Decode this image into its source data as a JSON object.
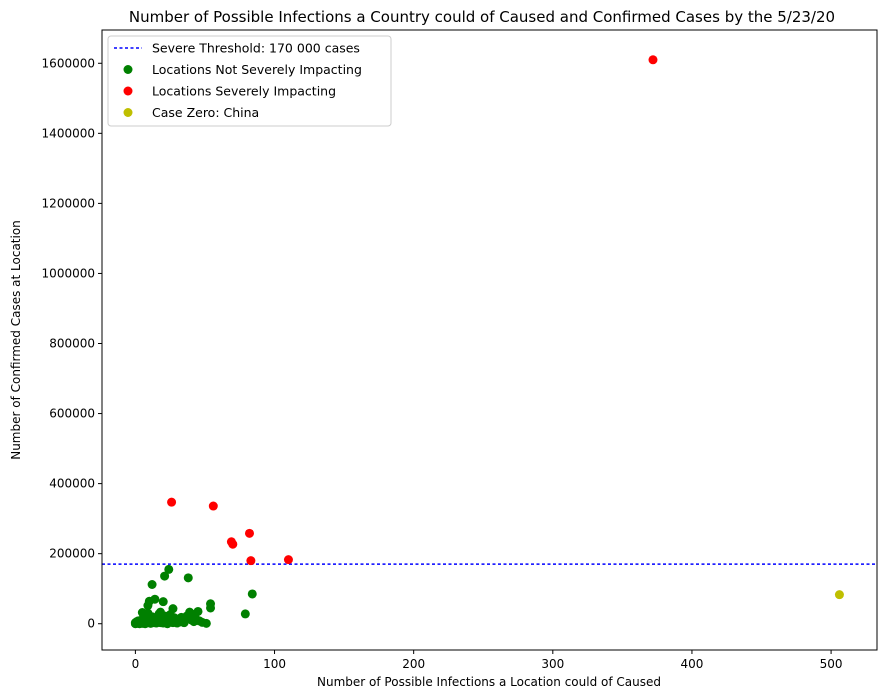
{
  "chart_data": {
    "type": "scatter",
    "title": "Number of Possible Infections a Country could of Caused and Confirmed Cases by the 5/23/20",
    "xlabel": "Number of Possible Infections a Location could of Caused",
    "ylabel": "Number of Confirmed Cases at Location",
    "xlim": [
      -24,
      533
    ],
    "ylim": [
      -75000,
      1695000
    ],
    "x_ticks": [
      0,
      100,
      200,
      300,
      400,
      500
    ],
    "x_tick_labels": [
      "0",
      "100",
      "200",
      "300",
      "400",
      "500"
    ],
    "y_ticks": [
      0,
      200000,
      400000,
      600000,
      800000,
      1000000,
      1200000,
      1400000,
      1600000
    ],
    "y_tick_labels": [
      "0",
      "200000",
      "400000",
      "600000",
      "800000",
      "1000000",
      "1200000",
      "1400000",
      "1600000"
    ],
    "grid": false,
    "legend_position": "top-left",
    "threshold": {
      "name": "Severe Threshold: 170 000 cases",
      "y": 170000,
      "color": "#0000ff",
      "style": "dotted"
    },
    "series": [
      {
        "name": "Locations Not Severely Impacting",
        "color": "#008000",
        "points": [
          [
            0,
            0
          ],
          [
            0,
            3000
          ],
          [
            1,
            1000
          ],
          [
            1,
            6000
          ],
          [
            2,
            2000
          ],
          [
            2,
            8000
          ],
          [
            3,
            0
          ],
          [
            3,
            4000
          ],
          [
            4,
            2000
          ],
          [
            4,
            10000
          ],
          [
            5,
            1000
          ],
          [
            5,
            5000
          ],
          [
            5,
            32000
          ],
          [
            6,
            3000
          ],
          [
            6,
            12000
          ],
          [
            7,
            0
          ],
          [
            7,
            7000
          ],
          [
            8,
            2000
          ],
          [
            8,
            15000
          ],
          [
            9,
            30000
          ],
          [
            9,
            52000
          ],
          [
            10,
            4000
          ],
          [
            10,
            64000
          ],
          [
            11,
            1000
          ],
          [
            11,
            8000
          ],
          [
            12,
            20000
          ],
          [
            12,
            112000
          ],
          [
            13,
            3000
          ],
          [
            13,
            11000
          ],
          [
            14,
            6000
          ],
          [
            14,
            70000
          ],
          [
            15,
            2000
          ],
          [
            15,
            14000
          ],
          [
            16,
            5000
          ],
          [
            17,
            9000
          ],
          [
            17,
            28000
          ],
          [
            18,
            3000
          ],
          [
            18,
            33000
          ],
          [
            19,
            6000
          ],
          [
            19,
            11000
          ],
          [
            20,
            2000
          ],
          [
            20,
            63000
          ],
          [
            21,
            22000
          ],
          [
            21,
            136000
          ],
          [
            22,
            8000
          ],
          [
            23,
            0
          ],
          [
            23,
            14000
          ],
          [
            24,
            155000
          ],
          [
            25,
            5000
          ],
          [
            25,
            26000
          ],
          [
            26,
            10000
          ],
          [
            27,
            3000
          ],
          [
            27,
            43000
          ],
          [
            28,
            17000
          ],
          [
            29,
            8000
          ],
          [
            30,
            2000
          ],
          [
            31,
            12000
          ],
          [
            32,
            5000
          ],
          [
            33,
            18000
          ],
          [
            34,
            9000
          ],
          [
            35,
            3000
          ],
          [
            36,
            14000
          ],
          [
            37,
            22000
          ],
          [
            38,
            131000
          ],
          [
            39,
            33000
          ],
          [
            40,
            11000
          ],
          [
            41,
            27000
          ],
          [
            42,
            6000
          ],
          [
            43,
            17000
          ],
          [
            44,
            10000
          ],
          [
            45,
            35000
          ],
          [
            46,
            8000
          ],
          [
            48,
            4000
          ],
          [
            51,
            1000
          ],
          [
            54,
            45000
          ],
          [
            54,
            57000
          ],
          [
            79,
            28000
          ],
          [
            84,
            85000
          ]
        ]
      },
      {
        "name": "Locations Severely Impacting",
        "color": "#ff0000",
        "points": [
          [
            26,
            347000
          ],
          [
            56,
            336000
          ],
          [
            69,
            234000
          ],
          [
            70,
            227000
          ],
          [
            82,
            258000
          ],
          [
            83,
            180000
          ],
          [
            110,
            183000
          ],
          [
            372,
            1610000
          ]
        ]
      },
      {
        "name": "Case Zero: China",
        "color": "#bfbf00",
        "points": [
          [
            506,
            83000
          ]
        ]
      }
    ]
  }
}
